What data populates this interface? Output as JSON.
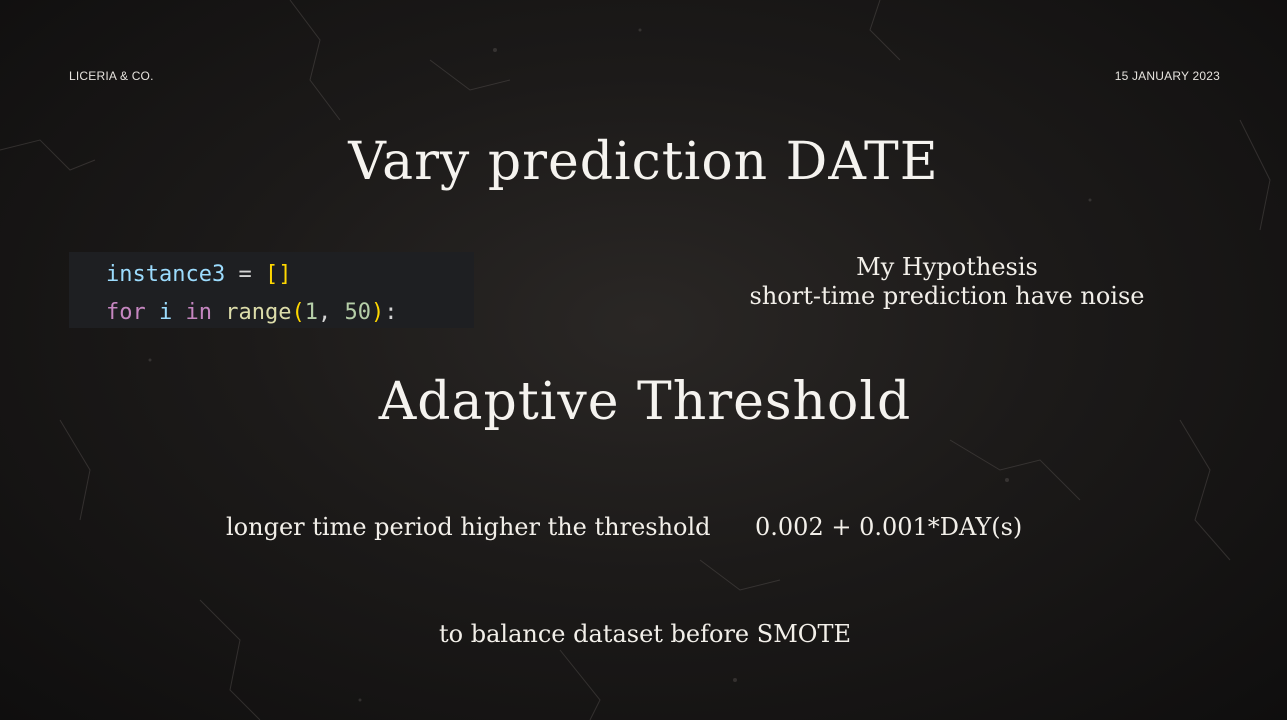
{
  "header": {
    "brand": "LICERIA & CO.",
    "date": "15 JANUARY 2023"
  },
  "title": "Vary prediction DATE",
  "code": {
    "line1": {
      "var": "instance3",
      "op": " = ",
      "brackets": "[]"
    },
    "line2": {
      "kw1": "for",
      "var": " i ",
      "kw2": "in",
      "fn": " range",
      "open": "(",
      "n1": "1",
      "sep": ", ",
      "n2": "50",
      "close": ")",
      "colon": ":"
    }
  },
  "hypothesis": {
    "heading": "My Hypothesis",
    "text": "short-time prediction have noise"
  },
  "subtitle": "Adaptive Threshold",
  "threshold": {
    "description": "longer time period higher the threshold",
    "formula": "0.002 + 0.001*DAY(s)"
  },
  "footer_note": "to balance dataset before SMOTE"
}
